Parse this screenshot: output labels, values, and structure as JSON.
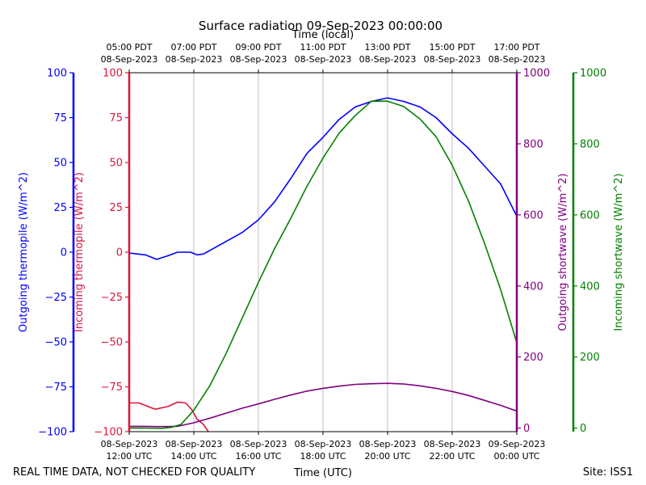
{
  "chart_data": {
    "type": "line",
    "title": "Surface radiation 09-Sep-2023 00:00:00",
    "xlabel_top": "Time (local)",
    "xlabel_bottom": "Time (UTC)",
    "footer_left": "REAL TIME DATA, NOT CHECKED FOR QUALITY",
    "footer_right": "Site: ISS1",
    "x_ticks": [
      {
        "utc_date": "08-Sep-2023",
        "utc_time": "12:00 UTC",
        "local_time": "05:00 PDT",
        "local_date": "08-Sep-2023"
      },
      {
        "utc_date": "08-Sep-2023",
        "utc_time": "14:00 UTC",
        "local_time": "07:00 PDT",
        "local_date": "08-Sep-2023"
      },
      {
        "utc_date": "08-Sep-2023",
        "utc_time": "16:00 UTC",
        "local_time": "09:00 PDT",
        "local_date": "08-Sep-2023"
      },
      {
        "utc_date": "08-Sep-2023",
        "utc_time": "18:00 UTC",
        "local_time": "11:00 PDT",
        "local_date": "08-Sep-2023"
      },
      {
        "utc_date": "08-Sep-2023",
        "utc_time": "20:00 UTC",
        "local_time": "13:00 PDT",
        "local_date": "08-Sep-2023"
      },
      {
        "utc_date": "08-Sep-2023",
        "utc_time": "22:00 UTC",
        "local_time": "15:00 PDT",
        "local_date": "08-Sep-2023"
      },
      {
        "utc_date": "09-Sep-2023",
        "utc_time": "00:00 UTC",
        "local_time": "17:00 PDT",
        "local_date": "08-Sep-2023"
      }
    ],
    "x_range_hours_utc": [
      12,
      24
    ],
    "grid": "vertical",
    "axes": [
      {
        "id": "out_thermo",
        "label": "Outgoing thermopile (W/m^2)",
        "color": "#0000ff",
        "range": [
          -100,
          100
        ],
        "ticks": [
          100,
          75,
          50,
          25,
          0,
          -25,
          -50,
          -75,
          -100
        ]
      },
      {
        "id": "in_thermo",
        "label": "Incoming thermopile (W/m^2)",
        "color": "#dc143c",
        "range": [
          -100,
          100
        ],
        "ticks": [
          100,
          75,
          50,
          25,
          0,
          -25,
          -50,
          -75,
          -100
        ]
      },
      {
        "id": "out_sw",
        "label": "Outgoing shortwave (W/m^2)",
        "color": "#800080",
        "range": [
          -10,
          1000
        ],
        "ticks": [
          1000,
          800,
          600,
          400,
          200,
          0
        ]
      },
      {
        "id": "in_sw",
        "label": "Incoming shortwave (W/m^2)",
        "color": "#008000",
        "range": [
          -10,
          1000
        ],
        "ticks": [
          1000,
          800,
          600,
          400,
          200,
          0
        ]
      }
    ],
    "series": [
      {
        "axis": "out_thermo",
        "color": "#0000ff",
        "x": [
          12,
          12.5,
          12.85,
          13.2,
          13.5,
          13.9,
          14.1,
          14.3,
          14.6,
          15,
          15.5,
          16,
          16.5,
          17,
          17.5,
          18,
          18.5,
          19,
          19.5,
          20,
          20.5,
          21,
          21.5,
          22,
          22.5,
          23,
          23.5,
          24
        ],
        "y": [
          -0.5,
          -1.5,
          -4,
          -2,
          0,
          0,
          -1.5,
          -1,
          2,
          6,
          11,
          18,
          28,
          41,
          55,
          64,
          74,
          81,
          84,
          86,
          84,
          81,
          75,
          66,
          58,
          48,
          38,
          20
        ]
      },
      {
        "axis": "in_thermo",
        "color": "#dc143c",
        "x": [
          12,
          12.3,
          12.8,
          13.2,
          13.5,
          13.75,
          13.95,
          14.1,
          14.3,
          14.45
        ],
        "y": [
          -84,
          -84,
          -87.5,
          -86,
          -83.5,
          -84,
          -88,
          -93,
          -96,
          -100
        ]
      },
      {
        "axis": "out_sw",
        "color": "#800080",
        "x": [
          12,
          12.5,
          13,
          13.5,
          14,
          14.5,
          15,
          15.5,
          16,
          16.5,
          17,
          17.5,
          18,
          18.5,
          19,
          19.5,
          20,
          20.5,
          21,
          21.5,
          22,
          22.5,
          23,
          23.5,
          24
        ],
        "y": [
          5,
          5,
          4,
          5,
          15,
          28,
          42,
          56,
          68,
          81,
          93,
          104,
          112,
          118,
          123,
          125,
          126,
          124,
          119,
          112,
          103,
          92,
          78,
          64,
          48
        ]
      },
      {
        "axis": "in_sw",
        "color": "#008000",
        "x": [
          12,
          12.5,
          13,
          13.3,
          13.6,
          14,
          14.5,
          15,
          15.5,
          16,
          16.5,
          17,
          17.5,
          18,
          18.5,
          19,
          19.5,
          20,
          20.5,
          21,
          21.5,
          22,
          22.5,
          23,
          23.5,
          24
        ],
        "y": [
          0,
          0,
          -1,
          2,
          10,
          50,
          120,
          210,
          310,
          410,
          505,
          590,
          680,
          760,
          830,
          880,
          920,
          920,
          905,
          870,
          820,
          740,
          640,
          520,
          390,
          240
        ]
      }
    ]
  }
}
